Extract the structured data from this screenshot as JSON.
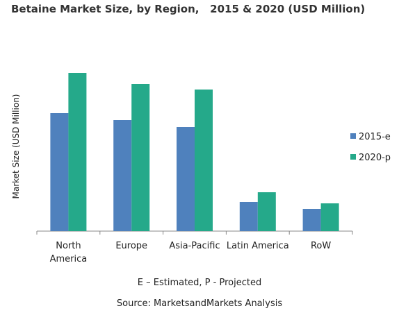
{
  "chart_data": {
    "type": "bar",
    "title": "Betaine Market Size, by Region,   2015 & 2020 (USD Million)",
    "ylabel": "Market Size (USD Million)",
    "xlabel": "",
    "categories": [
      [
        "North",
        "America"
      ],
      [
        "Europe"
      ],
      [
        "Asia-Pacific"
      ],
      [
        "Latin America"
      ],
      [
        "RoW"
      ]
    ],
    "series": [
      {
        "name": "2015-e",
        "color": "#4f81bd",
        "values": [
          170,
          160,
          150,
          42,
          32
        ]
      },
      {
        "name": "2020-p",
        "color": "#25a98a",
        "values": [
          228,
          212,
          204,
          56,
          40
        ]
      }
    ],
    "ylim": [
      0,
      240
    ],
    "grid": false,
    "legend_position": "right"
  },
  "footnote": "E – Estimated, P - Projected",
  "source": "Source: MarketsandMarkets Analysis"
}
